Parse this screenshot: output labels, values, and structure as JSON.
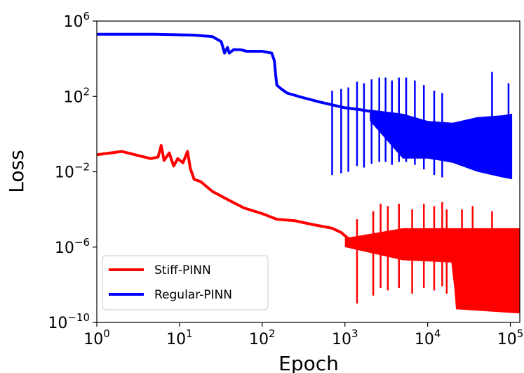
{
  "chart_data": {
    "type": "line",
    "xlabel": "Epoch",
    "ylabel": "Loss",
    "xscale": "log",
    "yscale": "log",
    "xlim": [
      1,
      130000
    ],
    "ylim": [
      1e-10,
      1000000.0
    ],
    "grid": false,
    "legend_position": "lower-left",
    "x_ticks": [
      {
        "value": 1,
        "base": "10",
        "exp": "0"
      },
      {
        "value": 10,
        "base": "10",
        "exp": "1"
      },
      {
        "value": 100,
        "base": "10",
        "exp": "2"
      },
      {
        "value": 1000,
        "base": "10",
        "exp": "3"
      },
      {
        "value": 10000,
        "base": "10",
        "exp": "4"
      },
      {
        "value": 100000,
        "base": "10",
        "exp": "5"
      }
    ],
    "y_ticks": [
      {
        "value": 1e-10,
        "base": "10",
        "exp": "−10"
      },
      {
        "value": 1e-06,
        "base": "10",
        "exp": "−6"
      },
      {
        "value": 0.01,
        "base": "10",
        "exp": "−2"
      },
      {
        "value": 100,
        "base": "10",
        "exp": "2"
      },
      {
        "value": 1000000.0,
        "base": "10",
        "exp": "6"
      }
    ],
    "series": [
      {
        "name": "Stiff-PINN",
        "color": "#ff0000",
        "x": [
          1,
          2,
          4.5,
          5.5,
          6,
          6.5,
          7.5,
          8.5,
          9.5,
          11,
          12.5,
          13.5,
          15,
          18,
          25,
          40,
          60,
          100,
          150,
          250,
          400,
          700,
          900,
          1200,
          1500,
          2000,
          3000,
          5000,
          10000,
          20000,
          22000,
          40000,
          80000,
          130000
        ],
        "y": [
          0.08,
          0.12,
          0.05,
          0.06,
          0.25,
          0.04,
          0.1,
          0.02,
          0.05,
          0.03,
          0.12,
          0.015,
          0.004,
          0.003,
          0.0009,
          0.0003,
          0.00012,
          6e-05,
          3e-05,
          2.5e-05,
          1.6e-05,
          1e-05,
          6e-06,
          2e-06,
          1e-06,
          6e-07,
          5e-07,
          4e-07,
          3e-07,
          2e-07,
          5e-09,
          4e-09,
          3e-09,
          5e-09
        ],
        "band_lower": [
          {
            "x": 1000,
            "y": 1e-06
          },
          {
            "x": 5000,
            "y": 2e-07
          },
          {
            "x": 20000,
            "y": 1.5e-07
          },
          {
            "x": 22000,
            "y": 5e-10
          },
          {
            "x": 130000,
            "y": 3e-10
          }
        ],
        "band_upper": [
          {
            "x": 1000,
            "y": 3e-06
          },
          {
            "x": 5000,
            "y": 1e-05
          },
          {
            "x": 20000,
            "y": 1e-05
          },
          {
            "x": 130000,
            "y": 1e-05
          }
        ],
        "spikes": [
          {
            "x": 1400,
            "y": 3e-05
          },
          {
            "x": 2200,
            "y": 8e-05
          },
          {
            "x": 2700,
            "y": 0.0002
          },
          {
            "x": 3300,
            "y": 0.00015
          },
          {
            "x": 4500,
            "y": 0.0002
          },
          {
            "x": 6500,
            "y": 0.0001
          },
          {
            "x": 9000,
            "y": 0.0002
          },
          {
            "x": 12000,
            "y": 0.00015
          },
          {
            "x": 15000,
            "y": 0.00025
          },
          {
            "x": 17000,
            "y": 0.0001
          },
          {
            "x": 26000,
            "y": 0.0001
          },
          {
            "x": 35000,
            "y": 0.00015
          },
          {
            "x": 60000,
            "y": 8e-05
          }
        ]
      },
      {
        "name": "Regular-PINN",
        "color": "#0000ff",
        "x": [
          1,
          5,
          15,
          25,
          32,
          35,
          38,
          40,
          45,
          55,
          65,
          100,
          130,
          140,
          145,
          150,
          170,
          200,
          300,
          500,
          1000,
          1500,
          3000,
          5000,
          10000
        ],
        "y": [
          200000,
          200000,
          180000,
          150000,
          80000,
          20000,
          40000,
          20000,
          30000,
          30000,
          25000,
          25000,
          20000,
          8000,
          1500,
          400,
          250,
          150,
          90,
          50,
          25,
          20,
          12,
          8,
          3
        ],
        "band_lower": [
          {
            "x": 2000,
            "y": 5
          },
          {
            "x": 5000,
            "y": 0.05
          },
          {
            "x": 10000,
            "y": 0.05
          },
          {
            "x": 20000,
            "y": 0.03
          },
          {
            "x": 40000,
            "y": 0.01
          },
          {
            "x": 80000,
            "y": 0.005
          },
          {
            "x": 105000,
            "y": 0.004
          }
        ],
        "band_upper": [
          {
            "x": 2000,
            "y": 20
          },
          {
            "x": 5000,
            "y": 12
          },
          {
            "x": 10000,
            "y": 5
          },
          {
            "x": 20000,
            "y": 4
          },
          {
            "x": 40000,
            "y": 8
          },
          {
            "x": 80000,
            "y": 10
          },
          {
            "x": 105000,
            "y": 12
          }
        ],
        "spikes": [
          {
            "x": 700,
            "y": 200
          },
          {
            "x": 900,
            "y": 250
          },
          {
            "x": 1100,
            "y": 300
          },
          {
            "x": 1400,
            "y": 600
          },
          {
            "x": 1700,
            "y": 500
          },
          {
            "x": 2100,
            "y": 800
          },
          {
            "x": 2600,
            "y": 1000
          },
          {
            "x": 3100,
            "y": 1000
          },
          {
            "x": 3700,
            "y": 700
          },
          {
            "x": 4500,
            "y": 1000
          },
          {
            "x": 5500,
            "y": 1000
          },
          {
            "x": 7000,
            "y": 700
          },
          {
            "x": 9000,
            "y": 400
          },
          {
            "x": 12000,
            "y": 200
          },
          {
            "x": 15000,
            "y": 150
          },
          {
            "x": 60000,
            "y": 2000
          },
          {
            "x": 95000,
            "y": 500
          }
        ]
      }
    ]
  }
}
